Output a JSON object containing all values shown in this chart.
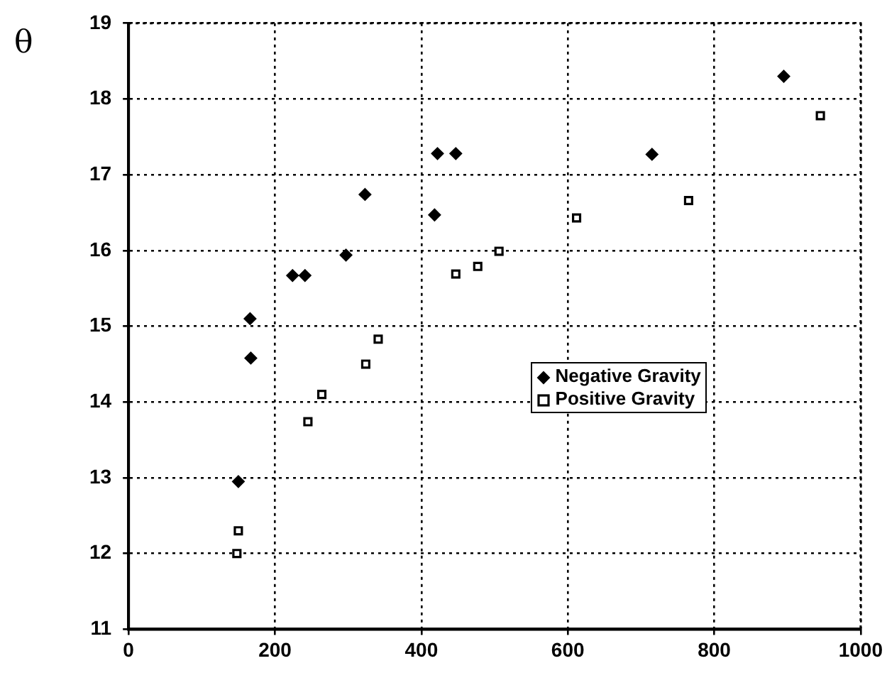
{
  "chart_data": {
    "type": "scatter",
    "ylabel": "θ",
    "xlim": [
      0,
      1000
    ],
    "ylim": [
      11,
      19
    ],
    "xticks": [
      0,
      200,
      400,
      600,
      800,
      1000
    ],
    "yticks": [
      11,
      12,
      13,
      14,
      15,
      16,
      17,
      18,
      19
    ],
    "grid": true,
    "legend": "right",
    "series": [
      {
        "name": "Negative Gravity",
        "color": "#000000",
        "marker": "diamond",
        "x": [
          150,
          163,
          167,
          166,
          224,
          241,
          297,
          323,
          418,
          422,
          447,
          715,
          895
        ],
        "values": [
          12.95,
          null,
          14.58,
          15.1,
          15.67,
          15.67,
          15.94,
          16.74,
          16.47,
          17.28,
          17.28,
          17.27,
          18.3
        ]
      },
      {
        "name": "Positive Gravity",
        "color": "#000000",
        "marker": "square",
        "x": [
          148,
          150,
          245,
          264,
          324,
          341,
          447,
          477,
          506,
          612,
          765,
          945
        ],
        "values": [
          12.0,
          12.3,
          13.74,
          14.1,
          14.5,
          14.83,
          15.69,
          15.79,
          15.99,
          16.43,
          16.66,
          17.78
        ]
      }
    ]
  }
}
